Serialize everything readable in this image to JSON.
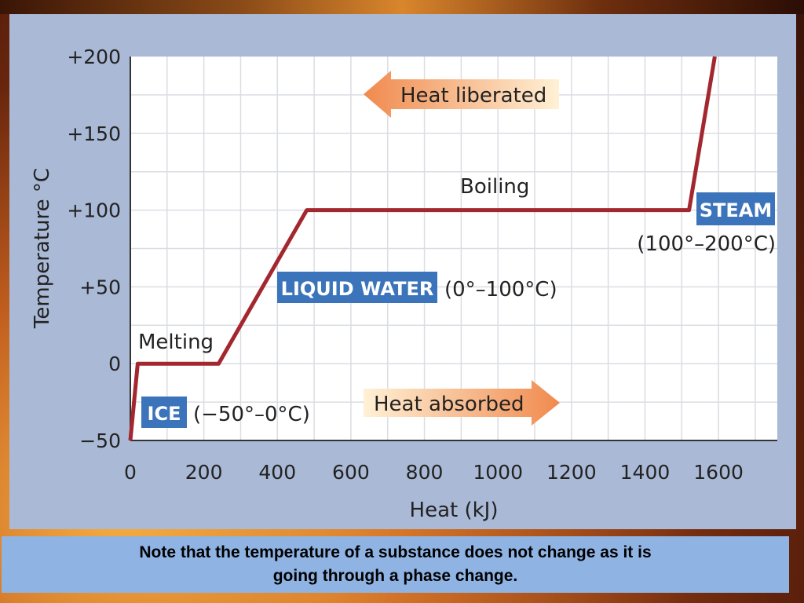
{
  "chart_data": {
    "type": "line",
    "xlabel": "Heat (kJ)",
    "ylabel": "Temperature °C",
    "xlim": [
      0,
      1760
    ],
    "ylim": [
      -50,
      200
    ],
    "x_ticks": [
      "0",
      "200",
      "400",
      "600",
      "800",
      "1000",
      "1200",
      "1400",
      "1600"
    ],
    "y_ticks": [
      "−50",
      "0",
      "+50",
      "+100",
      "+150",
      "+200"
    ],
    "x_tick_values": [
      0,
      200,
      400,
      600,
      800,
      1000,
      1200,
      1400,
      1600
    ],
    "y_tick_values": [
      -50,
      0,
      50,
      100,
      150,
      200
    ],
    "grid": true,
    "series": [
      {
        "color": "#a3272e",
        "points": [
          [
            0,
            -50
          ],
          [
            20,
            0
          ],
          [
            240,
            0
          ],
          [
            480,
            100
          ],
          [
            1520,
            100
          ],
          [
            1590,
            200
          ]
        ]
      }
    ],
    "annotations": {
      "melting": "Melting",
      "boiling": "Boiling",
      "ice_label": "ICE",
      "ice_range": "(−50°–0°C)",
      "liquid_label": "LIQUID WATER",
      "liquid_range": "(0°–100°C)",
      "steam_label": "STEAM",
      "steam_range": "(100°–200°C)",
      "heat_liberated": "Heat liberated",
      "heat_absorbed": "Heat absorbed"
    },
    "colors": {
      "phase_box": "#3b74bb",
      "arrow": "#f2a46a",
      "line": "#a3272e"
    }
  },
  "note": {
    "line1": "Note that the temperature of a substance does not change as it is",
    "line2": "going through a phase change."
  }
}
